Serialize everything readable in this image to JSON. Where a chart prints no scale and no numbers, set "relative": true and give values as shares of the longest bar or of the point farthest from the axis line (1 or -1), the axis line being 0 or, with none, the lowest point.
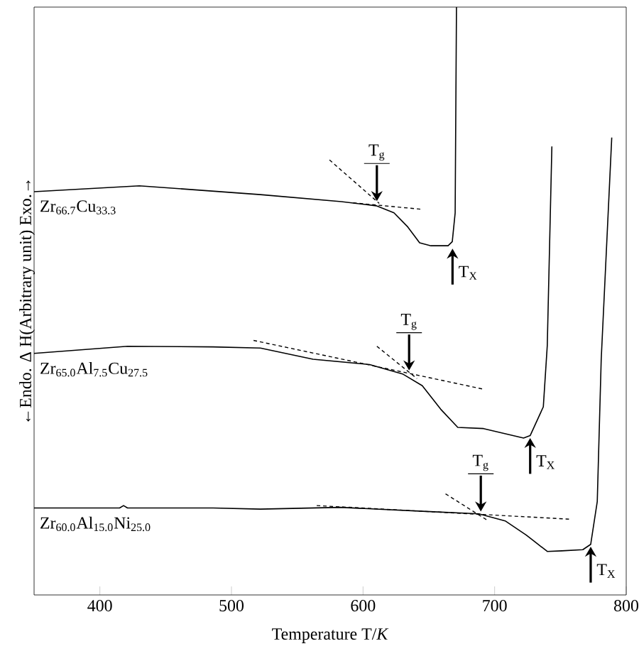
{
  "chart_data": {
    "type": "line",
    "relative": true,
    "xlabel": "Temperature  T/*K*",
    "ylabel": "←Endo.      Δ H(Arbitrary unit)      Exo.→",
    "xlim": [
      350,
      800
    ],
    "xticks": [
      400,
      500,
      600,
      700,
      800
    ],
    "series": [
      {
        "name": "Zr$_{66.7}$Cu$_{33.3}$",
        "color": "#000000",
        "x": [
          350,
          430,
          522,
          583.5,
          610,
          623.5,
          634,
          643,
          651.6,
          664.6,
          667.8,
          670,
          671
        ],
        "values": [
          0.686,
          0.696,
          0.681,
          0.669,
          0.662,
          0.65,
          0.626,
          0.599,
          0.594,
          0.594,
          0.601,
          0.65,
          1.0
        ]
      },
      {
        "name": "Zr$_{65.0}$Al$_{7.5}$Cu$_{27.5}$",
        "color": "#000000",
        "x": [
          350,
          421,
          486,
          522,
          562,
          605,
          630,
          645,
          659,
          672,
          691.6,
          722,
          727,
          737,
          740,
          743.5
        ],
        "values": [
          0.411,
          0.423,
          0.422,
          0.42,
          0.401,
          0.392,
          0.376,
          0.356,
          0.316,
          0.285,
          0.283,
          0.267,
          0.271,
          0.32,
          0.424,
          0.763
        ]
      },
      {
        "name": "Zr$_{60.0}$Al$_{15.0}$Ni$_{25.0}$",
        "color": "#000000",
        "x": [
          350,
          415,
          418,
          421,
          486,
          522,
          583,
          648,
          688,
          708,
          724,
          740,
          751,
          767,
          773,
          778,
          781,
          789
        ],
        "values": [
          0.148,
          0.148,
          0.152,
          0.148,
          0.148,
          0.146,
          0.149,
          0.142,
          0.138,
          0.126,
          0.102,
          0.074,
          0.075,
          0.077,
          0.086,
          0.159,
          0.401,
          0.778
        ]
      },
      {
        "color": "#000000",
        "line_style": "dashed",
        "x": [
          574.5,
          612.3
        ],
        "values": [
          0.74,
          0.666
        ]
      },
      {
        "color": "#000000",
        "line_style": "dashed",
        "x": [
          592.5,
          644.8
        ],
        "values": [
          0.667,
          0.656
        ]
      },
      {
        "color": "#000000",
        "line_style": "dashed",
        "x": [
          610.5,
          641
        ],
        "values": [
          0.423,
          0.368
        ]
      },
      {
        "color": "#000000",
        "line_style": "dashed",
        "x": [
          516.8,
          691.6
        ],
        "values": [
          0.433,
          0.35
        ]
      },
      {
        "color": "#000000",
        "line_style": "dashed",
        "x": [
          662.7,
          695.2
        ],
        "values": [
          0.172,
          0.126
        ]
      },
      {
        "color": "#000000",
        "line_style": "dashed",
        "x": [
          564.8,
          756.5
        ],
        "values": [
          0.152,
          0.129
        ]
      }
    ],
    "annotations": [
      {
        "text": "T$_{g}$",
        "x": 610.5,
        "y": 0.666
      },
      {
        "text": "T$_{X}$",
        "x": 668,
        "y": 0.593
      },
      {
        "text": "T$_{g}$",
        "x": 635,
        "y": 0.378
      },
      {
        "text": "T$_{X}$",
        "x": 727,
        "y": 0.271
      },
      {
        "text": "T$_{g}$",
        "x": 689.5,
        "y": 0.138
      },
      {
        "text": "T$_{X}$",
        "x": 773,
        "y": 0.086
      }
    ]
  }
}
